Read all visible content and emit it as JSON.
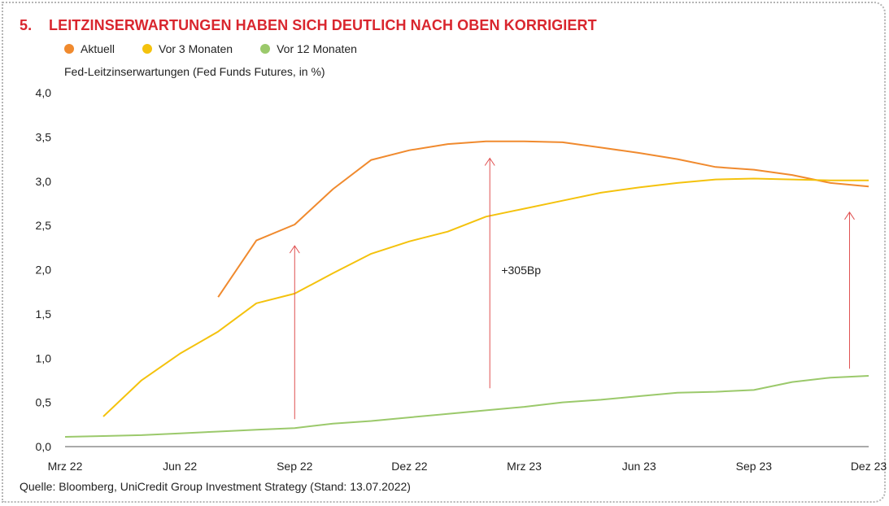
{
  "header": {
    "number": "5.",
    "title": "LEITZINSERWARTUNGEN HABEN SICH DEUTLICH NACH OBEN KORRIGIERT"
  },
  "subtitle": "Fed-Leitzinserwartungen (Fed Funds Futures, in %)",
  "source": "Quelle: Bloomberg, UniCredit Group Investment Strategy (Stand: 13.07.2022)",
  "colors": {
    "title": "#d9262e",
    "aktuell": "#f08a2e",
    "vor3": "#f4c20d",
    "vor12": "#9bc96b",
    "arrow": "#e05050",
    "axis": "#555555"
  },
  "chart_data": {
    "type": "line",
    "ylim": [
      0,
      4.0
    ],
    "yticks": [
      "0,0",
      "0,5",
      "1,0",
      "1,5",
      "2,0",
      "2,5",
      "3,0",
      "3,5",
      "4,0"
    ],
    "ytick_values": [
      0,
      0.5,
      1.0,
      1.5,
      2.0,
      2.5,
      3.0,
      3.5,
      4.0
    ],
    "xlim": [
      0,
      21
    ],
    "xticks": [
      {
        "label": "Mrz 22",
        "x": 0
      },
      {
        "label": "Jun 22",
        "x": 3
      },
      {
        "label": "Sep 22",
        "x": 6
      },
      {
        "label": "Dez 22",
        "x": 9
      },
      {
        "label": "Mrz 23",
        "x": 12
      },
      {
        "label": "Jun 23",
        "x": 15
      },
      {
        "label": "Sep 23",
        "x": 18
      },
      {
        "label": "Dez 23",
        "x": 21
      }
    ],
    "grid": false,
    "legend_position": "top-left",
    "series": [
      {
        "name": "Aktuell",
        "color_key": "aktuell",
        "points": [
          [
            4,
            1.69
          ],
          [
            5,
            2.33
          ],
          [
            6,
            2.51
          ],
          [
            7,
            2.91
          ],
          [
            8,
            3.24
          ],
          [
            9,
            3.35
          ],
          [
            10,
            3.42
          ],
          [
            11,
            3.45
          ],
          [
            12,
            3.45
          ],
          [
            13,
            3.44
          ],
          [
            14,
            3.38
          ],
          [
            15,
            3.32
          ],
          [
            16,
            3.25
          ],
          [
            17,
            3.16
          ],
          [
            18,
            3.13
          ],
          [
            19,
            3.07
          ],
          [
            20,
            2.98
          ],
          [
            21,
            2.94
          ]
        ]
      },
      {
        "name": "Vor 3 Monaten",
        "color_key": "vor3",
        "points": [
          [
            1,
            0.34
          ],
          [
            2,
            0.75
          ],
          [
            3,
            1.05
          ],
          [
            4,
            1.3
          ],
          [
            5,
            1.62
          ],
          [
            6,
            1.73
          ],
          [
            7,
            1.96
          ],
          [
            8,
            2.18
          ],
          [
            9,
            2.32
          ],
          [
            10,
            2.43
          ],
          [
            11,
            2.6
          ],
          [
            12,
            2.69
          ],
          [
            13,
            2.78
          ],
          [
            14,
            2.87
          ],
          [
            15,
            2.93
          ],
          [
            16,
            2.98
          ],
          [
            17,
            3.02
          ],
          [
            18,
            3.03
          ],
          [
            19,
            3.02
          ],
          [
            20,
            3.01
          ],
          [
            21,
            3.01
          ]
        ]
      },
      {
        "name": "Vor 12 Monaten",
        "color_key": "vor12",
        "points": [
          [
            0,
            0.11
          ],
          [
            1,
            0.12
          ],
          [
            2,
            0.13
          ],
          [
            3,
            0.15
          ],
          [
            4,
            0.17
          ],
          [
            5,
            0.19
          ],
          [
            6,
            0.21
          ],
          [
            7,
            0.26
          ],
          [
            8,
            0.29
          ],
          [
            9,
            0.33
          ],
          [
            10,
            0.37
          ],
          [
            11,
            0.41
          ],
          [
            12,
            0.45
          ],
          [
            13,
            0.5
          ],
          [
            14,
            0.53
          ],
          [
            15,
            0.57
          ],
          [
            16,
            0.61
          ],
          [
            17,
            0.62
          ],
          [
            18,
            0.64
          ],
          [
            19,
            0.73
          ],
          [
            20,
            0.78
          ],
          [
            21,
            0.8
          ]
        ]
      }
    ],
    "annotations": [
      {
        "type": "arrow",
        "x": 6,
        "y_from": 0.31,
        "y_to": 2.27
      },
      {
        "type": "arrow",
        "x": 11.1,
        "y_from": 0.66,
        "y_to": 3.26
      },
      {
        "type": "arrow",
        "x": 20.5,
        "y_from": 0.88,
        "y_to": 2.65
      },
      {
        "type": "text",
        "text": "+305Bp",
        "x": 11.4,
        "y": 1.95
      }
    ]
  }
}
